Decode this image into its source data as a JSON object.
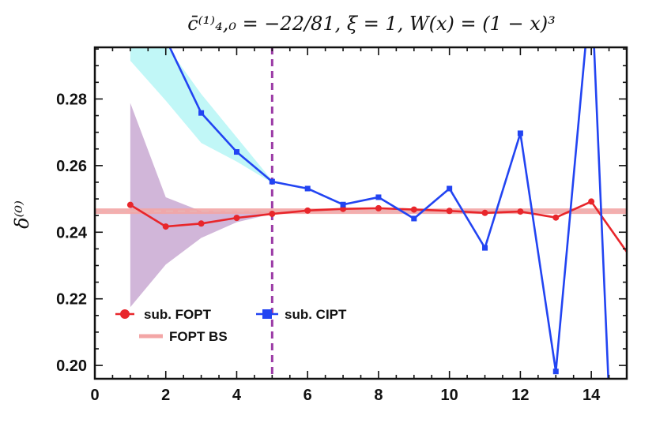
{
  "chart_data": {
    "type": "line",
    "title": "c̄⁽¹⁾₄,₀ = −22/81,  ξ = 1,  W(x) = (1 − x)³",
    "ylabel": "δ⁽⁰⁾",
    "xlabel": "",
    "xlim": [
      0,
      15
    ],
    "ylim": [
      0.196,
      0.2955
    ],
    "x_ticks": [
      0,
      2,
      4,
      6,
      8,
      10,
      12,
      14
    ],
    "y_ticks": [
      0.2,
      0.22,
      0.24,
      0.26,
      0.28
    ],
    "y_tick_labels": [
      "0.20",
      "0.22",
      "0.24",
      "0.26",
      "0.28"
    ],
    "x_tick_labels": [
      "0",
      "2",
      "4",
      "6",
      "8",
      "10",
      "12",
      "14"
    ],
    "vline": {
      "x": 5,
      "color": "#9b3ba6"
    },
    "series": [
      {
        "name": "sub. FOPT",
        "color": "#e8262b",
        "marker": "circle",
        "x": [
          1,
          2,
          3,
          4,
          5,
          6,
          7,
          8,
          9,
          10,
          11,
          12,
          13,
          14,
          15
        ],
        "y": [
          0.2482,
          0.2417,
          0.2426,
          0.2443,
          0.2455,
          0.2465,
          0.247,
          0.2472,
          0.2468,
          0.2464,
          0.2458,
          0.2462,
          0.2444,
          0.2492,
          0.2341
        ]
      },
      {
        "name": "sub. CIPT",
        "color": "#2244f2",
        "marker": "square",
        "x": [
          1,
          2,
          3,
          4,
          5,
          6,
          7,
          8,
          9,
          10,
          11,
          12,
          13,
          14,
          14.48
        ],
        "y": [
          0.31,
          0.298,
          0.2758,
          0.2641,
          0.2552,
          0.2531,
          0.2483,
          0.2505,
          0.2441,
          0.2531,
          0.2353,
          0.2697,
          0.1982,
          0.315,
          0.196
        ]
      },
      {
        "name": "FOPT BS",
        "color": "#f3a6a6",
        "marker": "none",
        "x": [
          0,
          15
        ],
        "y": [
          0.2463,
          0.2463
        ]
      }
    ],
    "bands": [
      {
        "color": "#c9a9d2",
        "x": [
          1,
          2,
          3,
          4,
          5
        ],
        "upper": [
          0.2788,
          0.2505,
          0.2463,
          0.2463,
          0.2463
        ],
        "lower": [
          0.2175,
          0.2303,
          0.2383,
          0.243,
          0.2455
        ]
      },
      {
        "color": "#b6f6f6",
        "x": [
          1,
          2,
          3,
          4,
          5
        ],
        "upper": [
          0.2998,
          0.2963,
          0.2815,
          0.2685,
          0.2555
        ],
        "lower": [
          0.2915,
          0.2795,
          0.2668,
          0.2612,
          0.2548
        ]
      }
    ],
    "legend": "bottom-left",
    "grid": false
  }
}
